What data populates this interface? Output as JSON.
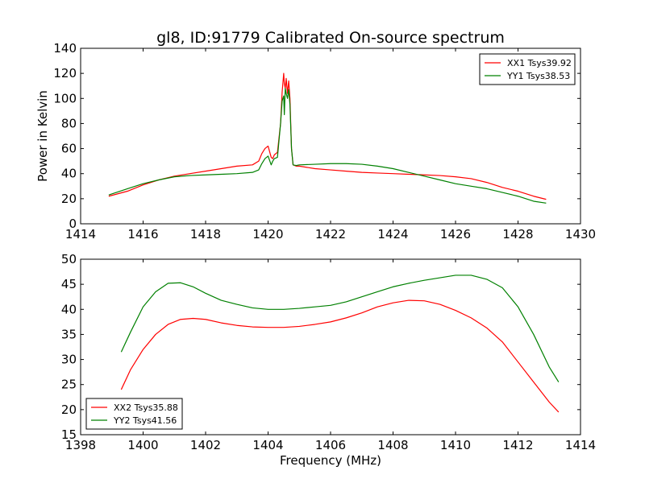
{
  "chart_data": [
    {
      "type": "line",
      "title": "gl8, ID:91779 Calibrated On-source spectrum",
      "xlabel": "",
      "ylabel": "Power in Kelvin",
      "xlim": [
        1414,
        1430
      ],
      "ylim": [
        0,
        140
      ],
      "xticks": [
        "1414",
        "1416",
        "1418",
        "1420",
        "1422",
        "1424",
        "1426",
        "1428",
        "1430"
      ],
      "yticks": [
        "0",
        "20",
        "40",
        "60",
        "80",
        "100",
        "120",
        "140"
      ],
      "legend": "top-right",
      "grid": false,
      "series": [
        {
          "name": "XX1 Tsys39.92",
          "color": "#ff0000",
          "x": [
            1414.9,
            1415.5,
            1416.0,
            1416.5,
            1417.0,
            1417.5,
            1418.0,
            1418.5,
            1419.0,
            1419.5,
            1419.7,
            1419.8,
            1419.9,
            1420.0,
            1420.1,
            1420.15,
            1420.2,
            1420.3,
            1420.4,
            1420.45,
            1420.5,
            1420.52,
            1420.55,
            1420.58,
            1420.62,
            1420.66,
            1420.7,
            1420.75,
            1420.8,
            1420.9,
            1421.0,
            1421.5,
            1422.0,
            1422.5,
            1423.0,
            1423.5,
            1424.0,
            1424.5,
            1425.0,
            1425.5,
            1426.0,
            1426.5,
            1427.0,
            1427.5,
            1428.0,
            1428.5,
            1428.9
          ],
          "values": [
            22,
            26,
            31,
            35,
            38,
            40,
            42,
            44,
            46,
            47,
            50,
            56,
            60,
            62,
            53,
            52,
            55,
            57,
            80,
            105,
            120,
            112,
            108,
            116,
            104,
            114,
            100,
            60,
            47,
            46,
            46,
            44,
            43,
            42,
            41,
            40.5,
            40,
            39.5,
            39,
            38.5,
            37.5,
            36,
            33,
            29,
            26,
            22,
            19.5
          ]
        },
        {
          "name": "YY1 Tsys38.53",
          "color": "#008000",
          "x": [
            1414.9,
            1415.5,
            1416.0,
            1416.5,
            1417.0,
            1417.5,
            1418.0,
            1418.5,
            1419.0,
            1419.5,
            1419.7,
            1419.8,
            1419.9,
            1420.0,
            1420.1,
            1420.15,
            1420.2,
            1420.3,
            1420.4,
            1420.45,
            1420.5,
            1420.52,
            1420.55,
            1420.58,
            1420.62,
            1420.66,
            1420.7,
            1420.75,
            1420.8,
            1420.9,
            1421.0,
            1421.5,
            1422.0,
            1422.5,
            1423.0,
            1423.5,
            1424.0,
            1424.5,
            1425.0,
            1425.5,
            1426.0,
            1426.5,
            1427.0,
            1427.5,
            1428.0,
            1428.5,
            1428.9
          ],
          "values": [
            23,
            28,
            32,
            35,
            37.5,
            38.5,
            39,
            39.5,
            40,
            41,
            43,
            48,
            52,
            54,
            47,
            50,
            52,
            53,
            80,
            98,
            102,
            87,
            108,
            104,
            100,
            107,
            95,
            60,
            47,
            46.5,
            47,
            47.5,
            48,
            48,
            47.5,
            46,
            44,
            41,
            38,
            35,
            32,
            30,
            28,
            25,
            22,
            18,
            16.5
          ]
        }
      ]
    },
    {
      "type": "line",
      "title": "",
      "xlabel": "Frequency (MHz)",
      "ylabel": "",
      "xlim": [
        1398,
        1414
      ],
      "ylim": [
        15,
        50
      ],
      "xticks": [
        "1398",
        "1400",
        "1402",
        "1404",
        "1406",
        "1408",
        "1410",
        "1412",
        "1414"
      ],
      "yticks": [
        "15",
        "20",
        "25",
        "30",
        "35",
        "40",
        "45",
        "50"
      ],
      "legend": "bottom-left",
      "grid": false,
      "series": [
        {
          "name": "XX2 Tsys35.88",
          "color": "#ff0000",
          "x": [
            1399.3,
            1399.6,
            1400.0,
            1400.4,
            1400.8,
            1401.2,
            1401.6,
            1402.0,
            1402.5,
            1403.0,
            1403.5,
            1404.0,
            1404.5,
            1405.0,
            1405.5,
            1406.0,
            1406.5,
            1407.0,
            1407.5,
            1408.0,
            1408.5,
            1409.0,
            1409.5,
            1410.0,
            1410.5,
            1411.0,
            1411.5,
            1412.0,
            1412.5,
            1413.0,
            1413.3
          ],
          "values": [
            24,
            28,
            32,
            35,
            37,
            38,
            38.2,
            38,
            37.3,
            36.8,
            36.5,
            36.4,
            36.4,
            36.6,
            37,
            37.5,
            38.3,
            39.3,
            40.5,
            41.3,
            41.8,
            41.7,
            41,
            39.8,
            38.3,
            36.3,
            33.5,
            29.5,
            25.5,
            21.5,
            19.5
          ]
        },
        {
          "name": "YY2 Tsys41.56",
          "color": "#008000",
          "x": [
            1399.3,
            1399.6,
            1400.0,
            1400.4,
            1400.8,
            1401.2,
            1401.6,
            1402.0,
            1402.5,
            1403.0,
            1403.5,
            1404.0,
            1404.5,
            1405.0,
            1405.5,
            1406.0,
            1406.5,
            1407.0,
            1407.5,
            1408.0,
            1408.5,
            1409.0,
            1409.5,
            1410.0,
            1410.5,
            1411.0,
            1411.5,
            1412.0,
            1412.5,
            1413.0,
            1413.3
          ],
          "values": [
            31.5,
            35.5,
            40.5,
            43.5,
            45.2,
            45.3,
            44.5,
            43.2,
            41.8,
            41,
            40.3,
            40,
            40,
            40.2,
            40.5,
            40.8,
            41.5,
            42.5,
            43.5,
            44.5,
            45.2,
            45.8,
            46.3,
            46.8,
            46.8,
            46,
            44.3,
            40.5,
            35,
            28.5,
            25.5
          ]
        }
      ]
    }
  ]
}
